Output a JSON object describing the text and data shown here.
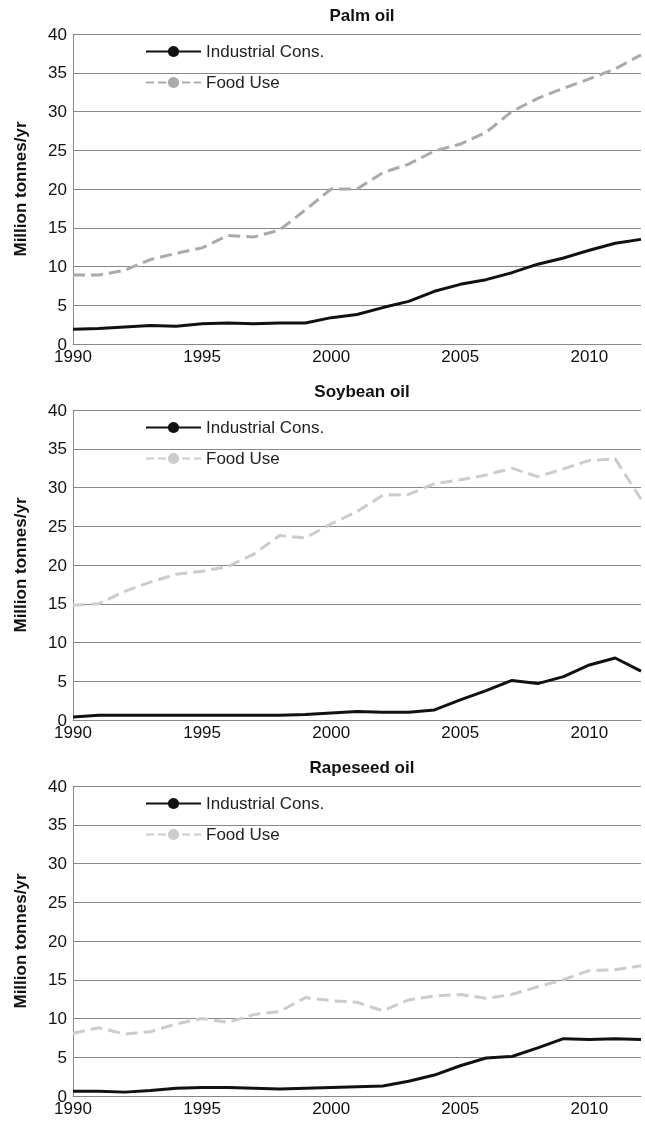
{
  "chart_data": [
    {
      "type": "line",
      "title": "Palm oil",
      "ylabel": "Million tonnes/yr",
      "x": [
        1990,
        1991,
        1992,
        1993,
        1994,
        1995,
        1996,
        1997,
        1998,
        1999,
        2000,
        2001,
        2002,
        2003,
        2004,
        2005,
        2006,
        2007,
        2008,
        2009,
        2010,
        2011,
        2012
      ],
      "xlim": [
        1990,
        2012
      ],
      "xticks": [
        1990,
        1995,
        2000,
        2005,
        2010
      ],
      "ylim": [
        0,
        40
      ],
      "yticks": [
        0,
        5,
        10,
        15,
        20,
        25,
        30,
        35,
        40
      ],
      "grid": "y",
      "legend": "top left",
      "marker": "none",
      "series": [
        {
          "name": "Industrial Cons.",
          "color": "#111111",
          "line_style": "solid",
          "values": [
            1.9,
            2.0,
            2.2,
            2.4,
            2.3,
            2.6,
            2.7,
            2.6,
            2.7,
            2.7,
            3.4,
            3.8,
            4.7,
            5.5,
            6.8,
            7.7,
            8.3,
            9.2,
            10.3,
            11.1,
            12.1,
            13.0,
            13.5
          ]
        },
        {
          "name": "Food Use",
          "color": "#aaaaaa",
          "line_style": "dashed",
          "values": [
            8.9,
            8.9,
            9.5,
            10.9,
            11.7,
            12.4,
            14.0,
            13.8,
            14.7,
            17.3,
            20.0,
            20.0,
            22.1,
            23.2,
            24.9,
            25.8,
            27.3,
            30.0,
            31.7,
            33.0,
            34.2,
            35.5,
            37.3
          ]
        }
      ]
    },
    {
      "type": "line",
      "title": "Soybean oil",
      "ylabel": "Million tonnes/yr",
      "x": [
        1990,
        1991,
        1992,
        1993,
        1994,
        1995,
        1996,
        1997,
        1998,
        1999,
        2000,
        2001,
        2002,
        2003,
        2004,
        2005,
        2006,
        2007,
        2008,
        2009,
        2010,
        2011,
        2012
      ],
      "xlim": [
        1990,
        2012
      ],
      "xticks": [
        1990,
        1995,
        2000,
        2005,
        2010
      ],
      "ylim": [
        0,
        40
      ],
      "yticks": [
        0,
        5,
        10,
        15,
        20,
        25,
        30,
        35,
        40
      ],
      "grid": "y",
      "legend": "top left",
      "marker": "none",
      "series": [
        {
          "name": "Industrial Cons.",
          "color": "#111111",
          "line_style": "solid",
          "values": [
            0.4,
            0.6,
            0.6,
            0.6,
            0.6,
            0.6,
            0.6,
            0.6,
            0.6,
            0.7,
            0.9,
            1.1,
            1.0,
            1.0,
            1.3,
            2.6,
            3.8,
            5.1,
            4.7,
            5.6,
            7.1,
            8.0,
            6.3
          ]
        },
        {
          "name": "Food Use",
          "color": "#cccccc",
          "line_style": "dashed",
          "values": [
            14.8,
            15.0,
            16.6,
            17.8,
            18.8,
            19.2,
            19.8,
            21.4,
            23.8,
            23.5,
            25.3,
            26.9,
            29.0,
            29.1,
            30.5,
            31.0,
            31.6,
            32.5,
            31.4,
            32.4,
            33.5,
            33.7,
            28.5
          ]
        }
      ]
    },
    {
      "type": "line",
      "title": "Rapeseed oil",
      "ylabel": "Million tonnes/yr",
      "x": [
        1990,
        1991,
        1992,
        1993,
        1994,
        1995,
        1996,
        1997,
        1998,
        1999,
        2000,
        2001,
        2002,
        2003,
        2004,
        2005,
        2006,
        2007,
        2008,
        2009,
        2010,
        2011,
        2012
      ],
      "xlim": [
        1990,
        2012
      ],
      "xticks": [
        1990,
        1995,
        2000,
        2005,
        2010
      ],
      "ylim": [
        0,
        40
      ],
      "yticks": [
        0,
        5,
        10,
        15,
        20,
        25,
        30,
        35,
        40
      ],
      "grid": "y",
      "legend": "top left",
      "marker": "none",
      "series": [
        {
          "name": "Industrial Cons.",
          "color": "#111111",
          "line_style": "solid",
          "values": [
            0.6,
            0.6,
            0.5,
            0.7,
            1.0,
            1.1,
            1.1,
            1.0,
            0.9,
            1.0,
            1.1,
            1.2,
            1.3,
            1.9,
            2.7,
            3.9,
            4.9,
            5.1,
            6.2,
            7.4,
            7.3,
            7.4,
            7.3
          ]
        },
        {
          "name": "Food Use",
          "color": "#cccccc",
          "line_style": "dashed",
          "values": [
            8.1,
            8.8,
            8.0,
            8.3,
            9.3,
            10.0,
            9.5,
            10.5,
            10.9,
            12.7,
            12.3,
            12.1,
            11.0,
            12.4,
            12.9,
            13.1,
            12.6,
            13.1,
            14.1,
            15.0,
            16.2,
            16.3,
            16.8
          ]
        }
      ]
    }
  ]
}
